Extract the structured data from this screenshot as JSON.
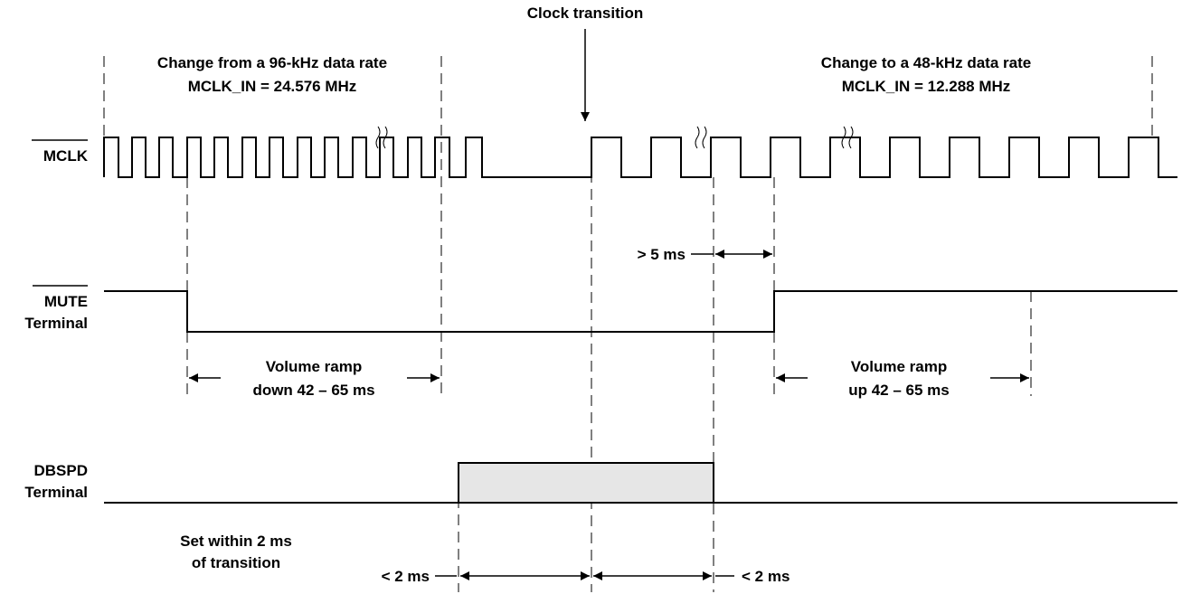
{
  "title": "Clock transition",
  "signals": {
    "mclk": "MCLK",
    "mute_line1": "MUTE",
    "mute_line2": "Terminal",
    "dbspd_line1": "DBSPD",
    "dbspd_line2": "Terminal"
  },
  "annotations": {
    "change_from_line1": "Change from a 96-kHz data rate",
    "change_from_line2": "MCLK_IN = 24.576 MHz",
    "change_to_line1": "Change to a 48-kHz data rate",
    "change_to_line2": "MCLK_IN = 12.288 MHz",
    "gt5ms": "> 5 ms",
    "ramp_down_line1": "Volume ramp",
    "ramp_down_line2": "down 42 – 65 ms",
    "ramp_up_line1": "Volume ramp",
    "ramp_up_line2": "up 42 – 65 ms",
    "set_within_line1": "Set within 2 ms",
    "set_within_line2": "of transition",
    "lt2ms_left": "< 2 ms",
    "lt2ms_right": "< 2 ms"
  },
  "colors": {
    "line": "#000000",
    "dbspd_fill": "#e6e6e6",
    "background": "#ffffff"
  }
}
